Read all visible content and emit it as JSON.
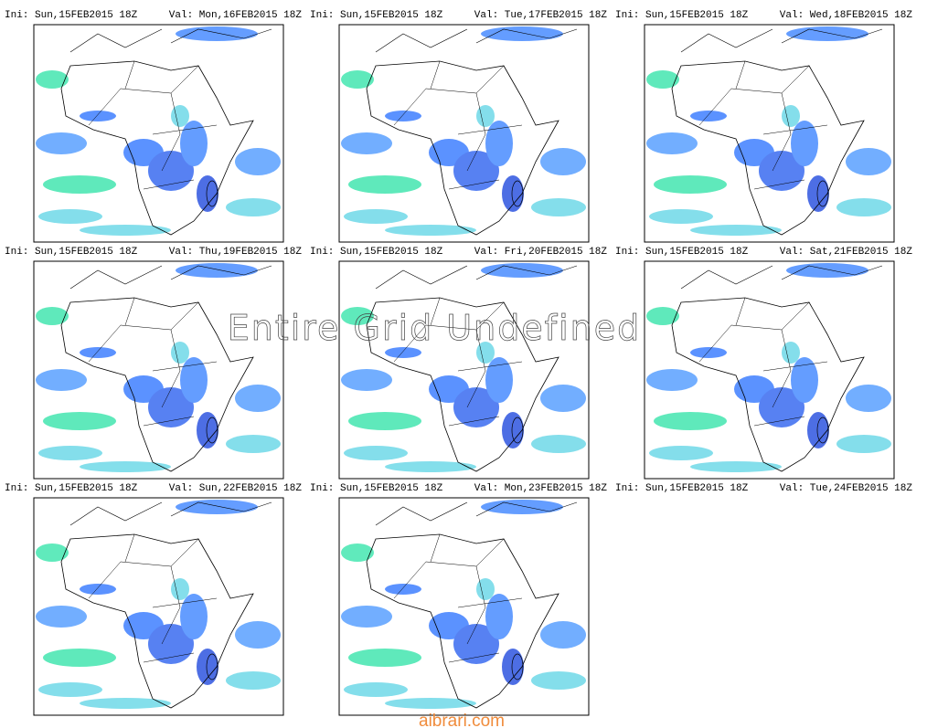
{
  "panels": [
    {
      "ini": "Ini: Sun,15FEB2015 18Z",
      "valid": "Val: Mon,16FEB2015 18Z"
    },
    {
      "ini": "Ini: Sun,15FEB2015 18Z",
      "valid": "Val: Tue,17FEB2015 18Z"
    },
    {
      "ini": "Ini: Sun,15FEB2015 18Z",
      "valid": "Val: Wed,18FEB2015 18Z"
    },
    {
      "ini": "Ini: Sun,15FEB2015 18Z",
      "valid": "Val: Thu,19FEB2015 18Z"
    },
    {
      "ini": "Ini: Sun,15FEB2015 18Z",
      "valid": "Val: Fri,20FEB2015 18Z"
    },
    {
      "ini": "Ini: Sun,15FEB2015 18Z",
      "valid": "Val: Sat,21FEB2015 18Z"
    },
    {
      "ini": "Ini: Sun,15FEB2015 18Z",
      "valid": "Val: Sun,22FEB2015 18Z"
    },
    {
      "ini": "Ini: Sun,15FEB2015 18Z",
      "valid": "Val: Mon,23FEB2015 18Z"
    },
    {
      "ini": "Ini: Sun,15FEB2015 18Z",
      "valid": "Val: Tue,24FEB2015 18Z"
    }
  ],
  "undefined_message": "Entire Grid Undefined",
  "watermark": "aibrari.com"
}
